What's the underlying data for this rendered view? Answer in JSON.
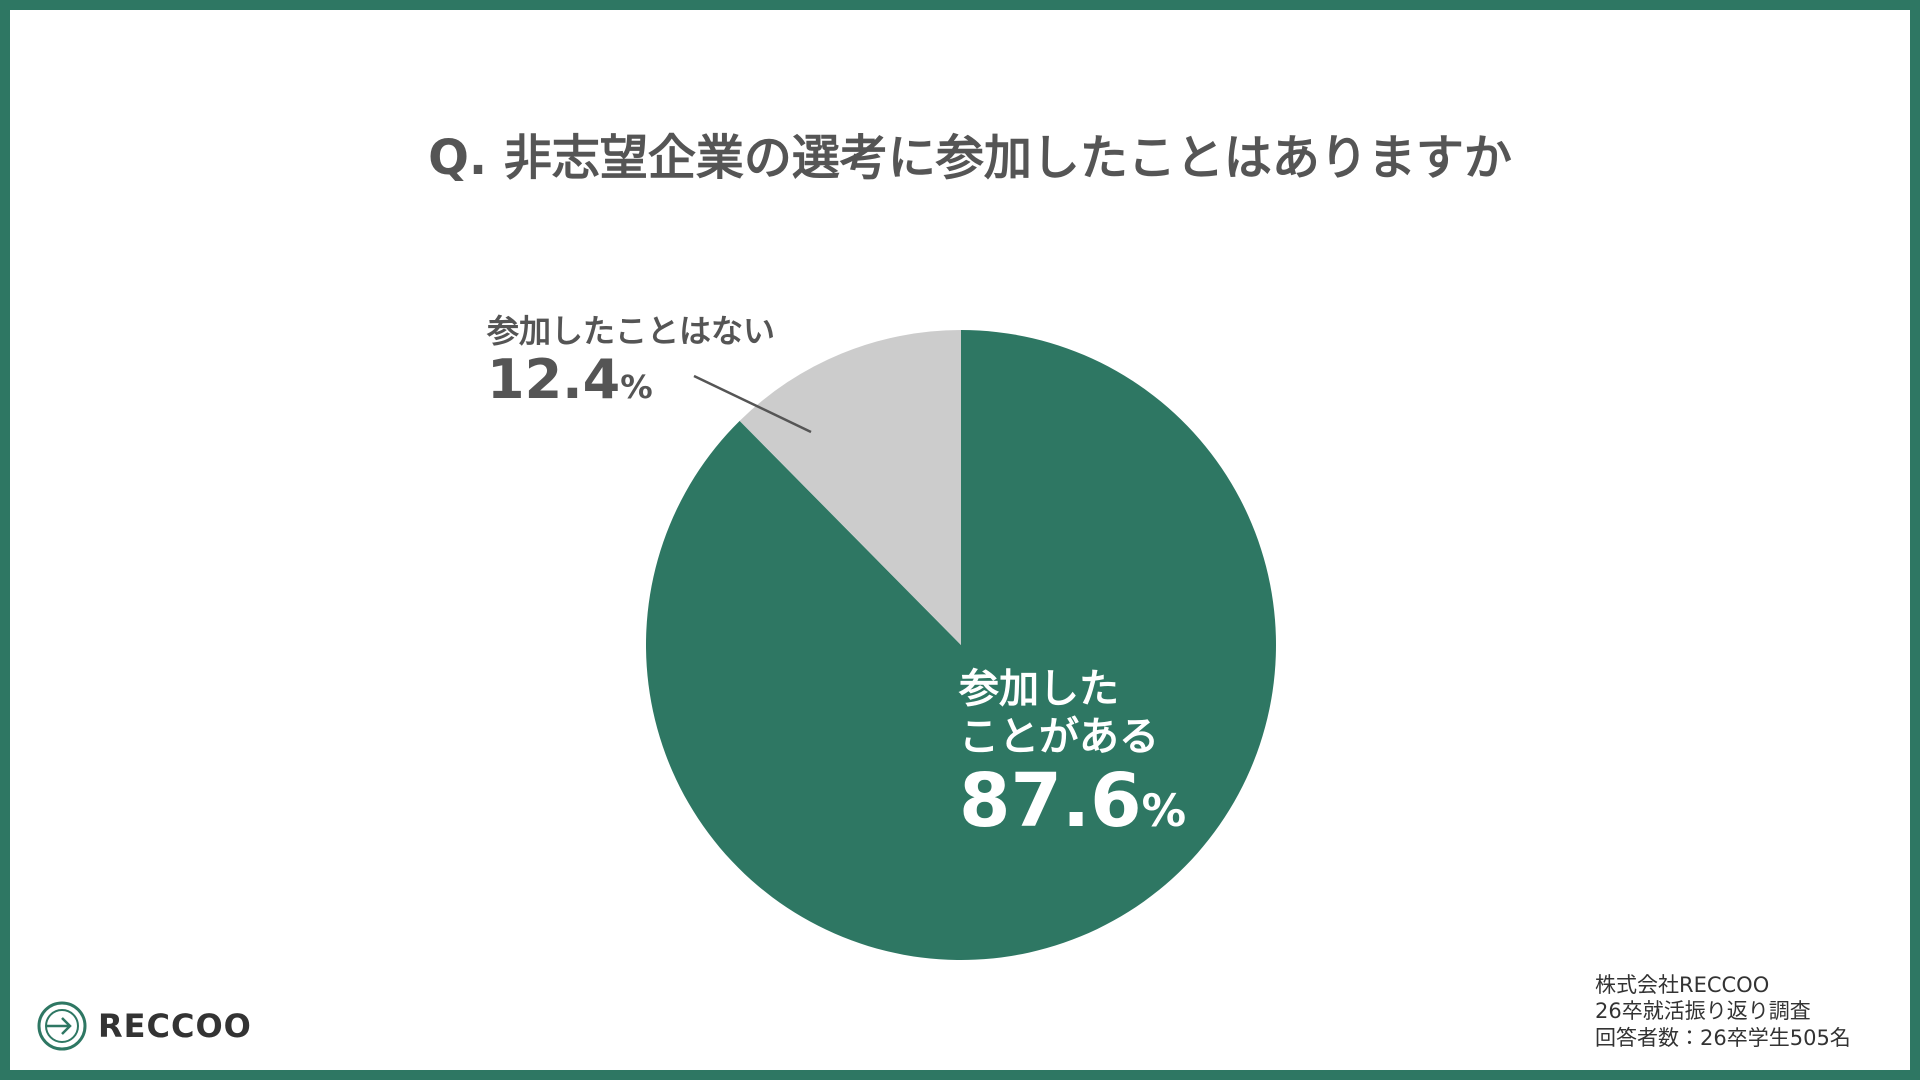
{
  "chart_data": {
    "type": "pie",
    "title": "Q. 非志望企業の選考に参加したことはありますか",
    "categories": [
      "参加した\nことがある",
      "参加したことはない"
    ],
    "values": [
      87.6,
      12.4
    ],
    "value_labels": [
      "87.6%",
      "12.4%"
    ],
    "colors": [
      "#2e7763",
      "#cccccc"
    ]
  },
  "footer": {
    "lines": [
      "株式会社RECCOO",
      "26卒就活振り返り調査",
      "回答者数：26卒学生505名"
    ]
  },
  "logo": {
    "text": "RECCOO"
  }
}
